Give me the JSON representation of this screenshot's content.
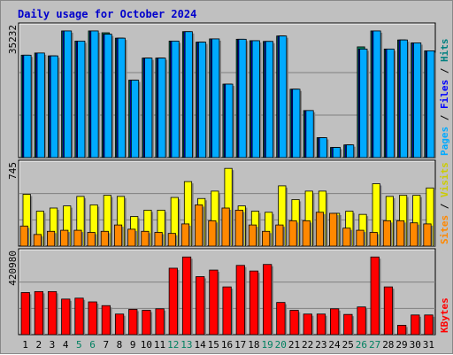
{
  "chart_data": {
    "type": "bar",
    "title": "Daily usage for October 2024",
    "categories": [
      "1",
      "2",
      "3",
      "4",
      "5",
      "6",
      "7",
      "8",
      "9",
      "10",
      "11",
      "12",
      "13",
      "14",
      "15",
      "16",
      "17",
      "18",
      "19",
      "20",
      "21",
      "22",
      "23",
      "24",
      "25",
      "26",
      "27",
      "28",
      "29",
      "30",
      "31"
    ],
    "weekend_days": [
      "5",
      "6",
      "12",
      "13",
      "19",
      "20",
      "26",
      "27"
    ],
    "panels": [
      {
        "name": "hits-files-pages",
        "ymax_label": "35232",
        "ylim": [
          0,
          35232
        ],
        "ylabel_parts": [
          {
            "text": "Pages",
            "color": "#00aaff"
          },
          {
            "text": " / ",
            "color": "#000000"
          },
          {
            "text": "Files",
            "color": "#0000ff"
          },
          {
            "text": " / ",
            "color": "#000000"
          },
          {
            "text": "Hits",
            "color": "#008080"
          }
        ],
        "series": [
          {
            "name": "Hits",
            "color": "#00805f",
            "values": [
              28300,
              28900,
              28100,
              35000,
              32200,
              35000,
              34500,
              33000,
              21400,
              27500,
              27500,
              32200,
              34800,
              31900,
              32800,
              20300,
              32700,
              32300,
              32100,
              33600,
              18900,
              13000,
              5500,
              2800,
              3500,
              30600,
              35000,
              30000,
              32500,
              31700,
              29500
            ]
          },
          {
            "name": "Files",
            "color": "#0000ff",
            "values": [
              28300,
              28900,
              28100,
              35000,
              32200,
              35000,
              34100,
              33000,
              21400,
              27500,
              27500,
              32200,
              34800,
              31900,
              32800,
              20300,
              32700,
              32300,
              32100,
              33600,
              18900,
              13000,
              5500,
              2800,
              3500,
              30000,
              35000,
              30000,
              32500,
              31700,
              29500
            ]
          },
          {
            "name": "Pages",
            "color": "#00aaff",
            "values": [
              28300,
              28900,
              28100,
              35000,
              32200,
              35000,
              34100,
              33000,
              21400,
              27500,
              27500,
              32200,
              34800,
              31900,
              32800,
              20300,
              32700,
              32300,
              32100,
              33600,
              18900,
              13000,
              5500,
              2800,
              3500,
              30000,
              35000,
              30000,
              32500,
              31700,
              29500
            ]
          }
        ]
      },
      {
        "name": "visits-sites",
        "ymax_label": "745",
        "ylim": [
          0,
          745
        ],
        "ylabel_parts": [
          {
            "text": "Sites",
            "color": "#ff8800"
          },
          {
            "text": " / ",
            "color": "#000000"
          },
          {
            "text": "Visits",
            "color": "#cccc00"
          }
        ],
        "series": [
          {
            "name": "Visits",
            "color": "#ffff00",
            "values": [
              490,
              330,
              360,
              380,
              470,
              390,
              480,
              470,
              280,
              340,
              340,
              460,
              610,
              450,
              520,
              735,
              380,
              330,
              320,
              570,
              440,
              520,
              520,
              310,
              330,
              300,
              590,
              470,
              480,
              480,
              550
            ]
          },
          {
            "name": "Sites",
            "color": "#ff8800",
            "values": [
              190,
              110,
              140,
              150,
              150,
              130,
              140,
              200,
              160,
              140,
              130,
              120,
              210,
              390,
              240,
              360,
              340,
              200,
              140,
              200,
              240,
              240,
              320,
              310,
              170,
              150,
              130,
              240,
              240,
              220,
              210
            ]
          }
        ]
      },
      {
        "name": "kbytes",
        "ymax_label": "420980",
        "ylim": [
          0,
          420980
        ],
        "ylabel_parts": [
          {
            "text": "KBytes",
            "color": "#ff0000"
          }
        ],
        "series": [
          {
            "name": "KBytes",
            "color": "#ff0000",
            "values": [
              225000,
              230000,
              230000,
              190000,
              195000,
              175000,
              155000,
              110000,
              135000,
              130000,
              138000,
              355000,
              415000,
              310000,
              345000,
              255000,
              370000,
              340000,
              375000,
              172000,
              130000,
              110000,
              110000,
              138000,
              108000,
              148000,
              415000,
              255000,
              50000,
              105000,
              105000
            ]
          }
        ]
      }
    ]
  }
}
